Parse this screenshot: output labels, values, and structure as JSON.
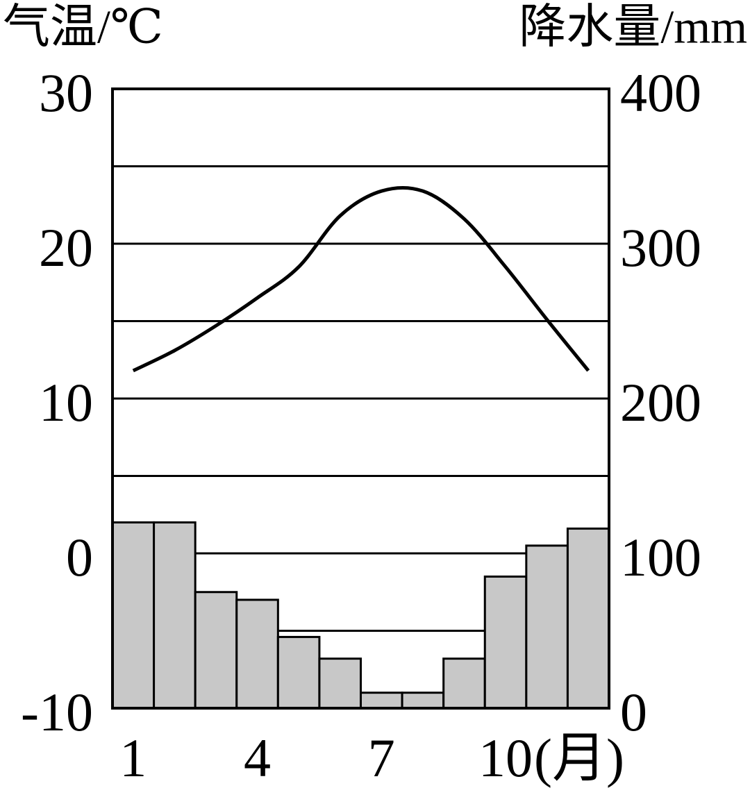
{
  "chart_data": {
    "type": "climate",
    "y_label": "气温/℃",
    "y2_label": "降水量/mm",
    "x_label": "(月)",
    "categories": [
      "1",
      null,
      null,
      "4",
      null,
      null,
      "7",
      null,
      null,
      "10",
      null,
      null
    ],
    "series": [
      {
        "type": "bar",
        "axis": "y2",
        "color": "#c8c8c8",
        "values": [
          120,
          120,
          75,
          70,
          46,
          32,
          10,
          10,
          32,
          85,
          105,
          116
        ]
      },
      {
        "type": "line",
        "axis": "y",
        "color": "#000000",
        "values": [
          11.8,
          13.1,
          14.7,
          16.5,
          18.5,
          21.8,
          23.4,
          23.4,
          21.6,
          18.5,
          15.1,
          11.8
        ]
      }
    ],
    "ylim": [
      -10,
      30
    ],
    "yticks": [
      -10,
      0,
      10,
      20,
      30
    ],
    "y2lim": [
      0,
      400
    ],
    "y2ticks": [
      0,
      100,
      200,
      300,
      400
    ],
    "minor_yticks": [
      -5,
      5,
      15,
      25
    ],
    "grid": true
  }
}
